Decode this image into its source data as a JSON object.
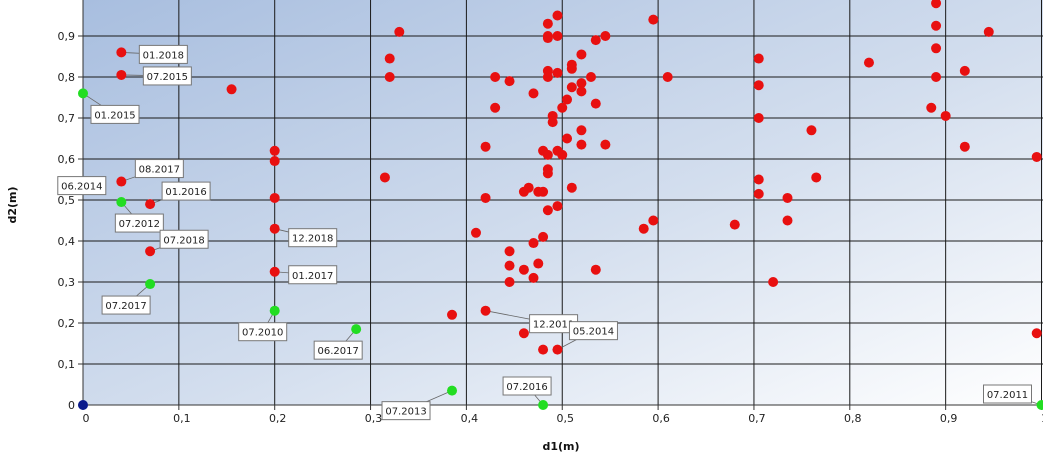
{
  "chart_data": {
    "type": "scatter",
    "xlabel": "d1(m)",
    "ylabel": "d2(m)",
    "xlim": [
      0,
      1.0
    ],
    "ylim": [
      0,
      0.95
    ],
    "x_ticks": [
      "0",
      "0,1",
      "0,2",
      "0,3",
      "0,4",
      "0,5",
      "0,6",
      "0,7",
      "0,8",
      "0,9",
      "1"
    ],
    "y_ticks": [
      "0",
      "0,1",
      "0,2",
      "0,3",
      "0,4",
      "0,5",
      "0,6",
      "0,7",
      "0,8",
      "0,9"
    ],
    "grid": true,
    "series": [
      {
        "color": "#e81010",
        "points": [
          [
            0.04,
            0.86
          ],
          [
            0.04,
            0.805
          ],
          [
            0.04,
            0.545
          ],
          [
            0.07,
            0.49
          ],
          [
            0.07,
            0.375
          ],
          [
            0.155,
            0.77
          ],
          [
            0.2,
            0.62
          ],
          [
            0.2,
            0.595
          ],
          [
            0.2,
            0.505
          ],
          [
            0.2,
            0.43
          ],
          [
            0.2,
            0.325
          ],
          [
            0.315,
            0.555
          ],
          [
            0.32,
            0.845
          ],
          [
            0.32,
            0.8
          ],
          [
            0.33,
            0.91
          ],
          [
            0.385,
            0.22
          ],
          [
            0.41,
            0.42
          ],
          [
            0.42,
            0.63
          ],
          [
            0.42,
            0.505
          ],
          [
            0.42,
            0.23
          ],
          [
            0.43,
            0.8
          ],
          [
            0.43,
            0.725
          ],
          [
            0.445,
            0.79
          ],
          [
            0.445,
            0.375
          ],
          [
            0.445,
            0.34
          ],
          [
            0.445,
            0.3
          ],
          [
            0.46,
            0.52
          ],
          [
            0.46,
            0.33
          ],
          [
            0.46,
            0.175
          ],
          [
            0.465,
            0.53
          ],
          [
            0.47,
            0.76
          ],
          [
            0.47,
            0.395
          ],
          [
            0.47,
            0.31
          ],
          [
            0.475,
            0.52
          ],
          [
            0.475,
            0.345
          ],
          [
            0.48,
            0.52
          ],
          [
            0.48,
            0.41
          ],
          [
            0.48,
            0.135
          ],
          [
            0.48,
            0.62
          ],
          [
            0.485,
            0.93
          ],
          [
            0.485,
            0.9
          ],
          [
            0.485,
            0.895
          ],
          [
            0.485,
            0.815
          ],
          [
            0.485,
            0.8
          ],
          [
            0.485,
            0.61
          ],
          [
            0.485,
            0.575
          ],
          [
            0.485,
            0.565
          ],
          [
            0.485,
            0.475
          ],
          [
            0.49,
            0.69
          ],
          [
            0.49,
            0.705
          ],
          [
            0.495,
            0.95
          ],
          [
            0.495,
            0.9
          ],
          [
            0.495,
            0.81
          ],
          [
            0.495,
            0.62
          ],
          [
            0.495,
            0.485
          ],
          [
            0.495,
            0.135
          ],
          [
            0.5,
            0.725
          ],
          [
            0.5,
            0.61
          ],
          [
            0.505,
            0.745
          ],
          [
            0.505,
            0.65
          ],
          [
            0.51,
            0.82
          ],
          [
            0.51,
            0.83
          ],
          [
            0.51,
            0.775
          ],
          [
            0.51,
            0.53
          ],
          [
            0.52,
            0.855
          ],
          [
            0.52,
            0.785
          ],
          [
            0.52,
            0.765
          ],
          [
            0.52,
            0.67
          ],
          [
            0.52,
            0.635
          ],
          [
            0.53,
            0.8
          ],
          [
            0.535,
            0.89
          ],
          [
            0.535,
            0.735
          ],
          [
            0.535,
            0.33
          ],
          [
            0.545,
            0.9
          ],
          [
            0.545,
            0.635
          ],
          [
            0.585,
            0.43
          ],
          [
            0.595,
            0.94
          ],
          [
            0.595,
            0.45
          ],
          [
            0.61,
            0.8
          ],
          [
            0.68,
            0.44
          ],
          [
            0.705,
            0.845
          ],
          [
            0.705,
            0.78
          ],
          [
            0.705,
            0.7
          ],
          [
            0.705,
            0.55
          ],
          [
            0.705,
            0.515
          ],
          [
            0.72,
            0.3
          ],
          [
            0.735,
            0.505
          ],
          [
            0.735,
            0.45
          ],
          [
            0.76,
            0.67
          ],
          [
            0.765,
            0.555
          ],
          [
            0.82,
            0.835
          ],
          [
            0.885,
            0.725
          ],
          [
            0.89,
            0.98
          ],
          [
            0.89,
            0.925
          ],
          [
            0.89,
            0.87
          ],
          [
            0.89,
            0.8
          ],
          [
            0.9,
            0.705
          ],
          [
            0.92,
            0.815
          ],
          [
            0.92,
            0.63
          ],
          [
            0.945,
            0.91
          ],
          [
            0.995,
            0.605
          ],
          [
            0.995,
            0.175
          ]
        ]
      },
      {
        "color": "#22dd22",
        "points": [
          [
            0.0,
            0.76
          ],
          [
            0.005,
            0.54
          ],
          [
            0.04,
            0.495
          ],
          [
            0.07,
            0.295
          ],
          [
            0.2,
            0.23
          ],
          [
            0.285,
            0.185
          ],
          [
            0.385,
            0.035
          ],
          [
            0.48,
            0.0
          ],
          [
            1.0,
            0.0
          ]
        ]
      },
      {
        "color": "#0a1a8c",
        "points": [
          [
            0.0,
            0.0
          ]
        ]
      }
    ],
    "annotations": [
      {
        "text": "01.2018",
        "x": 0.04,
        "y": 0.86
      },
      {
        "text": "07.2015",
        "x": 0.04,
        "y": 0.805
      },
      {
        "text": "01.2015",
        "x": 0.0,
        "y": 0.76
      },
      {
        "text": "08.2017",
        "x": 0.04,
        "y": 0.545
      },
      {
        "text": "06.2014",
        "x": 0.005,
        "y": 0.54
      },
      {
        "text": "01.2016",
        "x": 0.07,
        "y": 0.49
      },
      {
        "text": "07.2012",
        "x": 0.04,
        "y": 0.495
      },
      {
        "text": "07.2018",
        "x": 0.07,
        "y": 0.375
      },
      {
        "text": "12.2018",
        "x": 0.2,
        "y": 0.43
      },
      {
        "text": "01.2017",
        "x": 0.2,
        "y": 0.325
      },
      {
        "text": "07.2017",
        "x": 0.07,
        "y": 0.295
      },
      {
        "text": "07.2010",
        "x": 0.2,
        "y": 0.23
      },
      {
        "text": "06.2017",
        "x": 0.285,
        "y": 0.185
      },
      {
        "text": "12.2011",
        "x": 0.42,
        "y": 0.23
      },
      {
        "text": "05.2014",
        "x": 0.495,
        "y": 0.135
      },
      {
        "text": "07.2016",
        "x": 0.48,
        "y": 0.0
      },
      {
        "text": "07.2013",
        "x": 0.385,
        "y": 0.035
      },
      {
        "text": "07.2011",
        "x": 1.0,
        "y": 0.0
      }
    ]
  }
}
